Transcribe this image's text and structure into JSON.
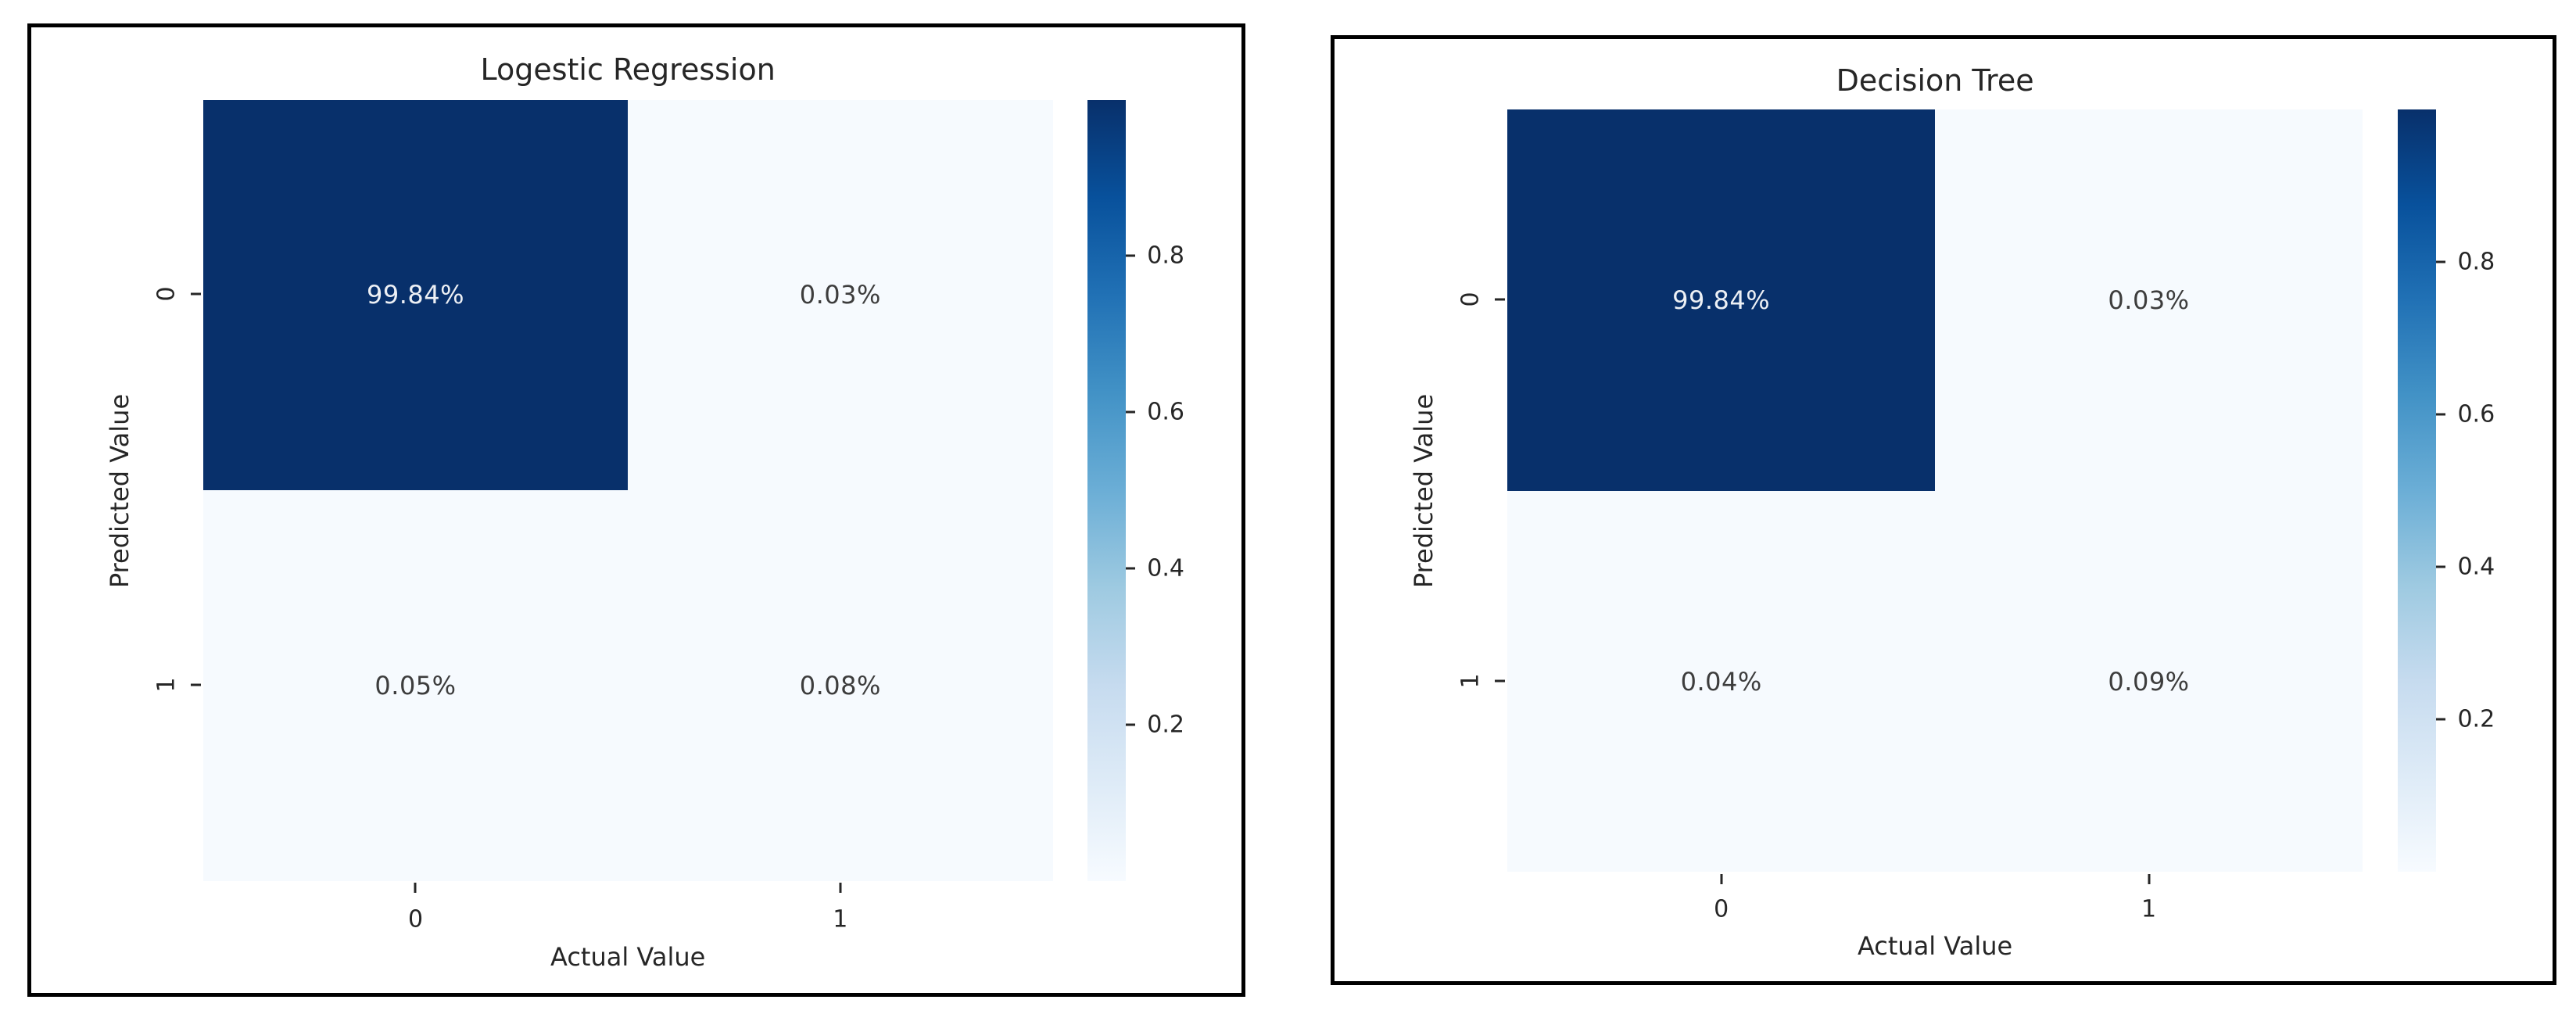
{
  "colors": {
    "panel_border": "#000000",
    "background": "#ffffff",
    "cell_dark": "#08306b",
    "cell_light": "#f6fafe",
    "annot_on_dark": "#edf0f5",
    "annot_on_light": "#3d3d3d",
    "axis_text": "#262626",
    "colorbar_stops": [
      "#f7fbff",
      "#deebf7",
      "#c6dbef",
      "#9ecae1",
      "#6baed6",
      "#4292c6",
      "#2171b5",
      "#08519c",
      "#08306b"
    ]
  },
  "panels": [
    {
      "title": "Logestic Regression",
      "xlabel": "Actual Value",
      "ylabel": "Predicted Value",
      "x_ticks": [
        "0",
        "1"
      ],
      "y_ticks": [
        "0",
        "1"
      ],
      "cells": [
        [
          "99.84%",
          "0.03%"
        ],
        [
          "0.05%",
          "0.08%"
        ]
      ],
      "colorbar_ticks": [
        "0.8",
        "0.6",
        "0.4",
        "0.2"
      ]
    },
    {
      "title": "Decision Tree",
      "xlabel": "Actual Value",
      "ylabel": "Predicted Value",
      "x_ticks": [
        "0",
        "1"
      ],
      "y_ticks": [
        "0",
        "1"
      ],
      "cells": [
        [
          "99.84%",
          "0.03%"
        ],
        [
          "0.04%",
          "0.09%"
        ]
      ],
      "colorbar_ticks": [
        "0.8",
        "0.6",
        "0.4",
        "0.2"
      ]
    }
  ],
  "chart_data": [
    {
      "type": "heatmap",
      "title": "Logestic Regression",
      "xlabel": "Actual Value",
      "ylabel": "Predicted Value",
      "x_categories": [
        "0",
        "1"
      ],
      "y_categories": [
        "0",
        "1"
      ],
      "values_percent": [
        [
          99.84,
          0.03
        ],
        [
          0.05,
          0.08
        ]
      ],
      "cell_labels": [
        [
          "99.84%",
          "0.03%"
        ],
        [
          "0.05%",
          "0.08%"
        ]
      ],
      "colormap": "Blues",
      "colorbar_ticks": [
        0.2,
        0.4,
        0.6,
        0.8
      ],
      "colorbar_range": [
        0,
        1
      ],
      "legend_position": "right",
      "grid": false
    },
    {
      "type": "heatmap",
      "title": "Decision Tree",
      "xlabel": "Actual Value",
      "ylabel": "Predicted Value",
      "x_categories": [
        "0",
        "1"
      ],
      "y_categories": [
        "0",
        "1"
      ],
      "values_percent": [
        [
          99.84,
          0.03
        ],
        [
          0.04,
          0.09
        ]
      ],
      "cell_labels": [
        [
          "99.84%",
          "0.03%"
        ],
        [
          "0.04%",
          "0.09%"
        ]
      ],
      "colormap": "Blues",
      "colorbar_ticks": [
        0.2,
        0.4,
        0.6,
        0.8
      ],
      "colorbar_range": [
        0,
        1
      ],
      "legend_position": "right",
      "grid": false
    }
  ]
}
